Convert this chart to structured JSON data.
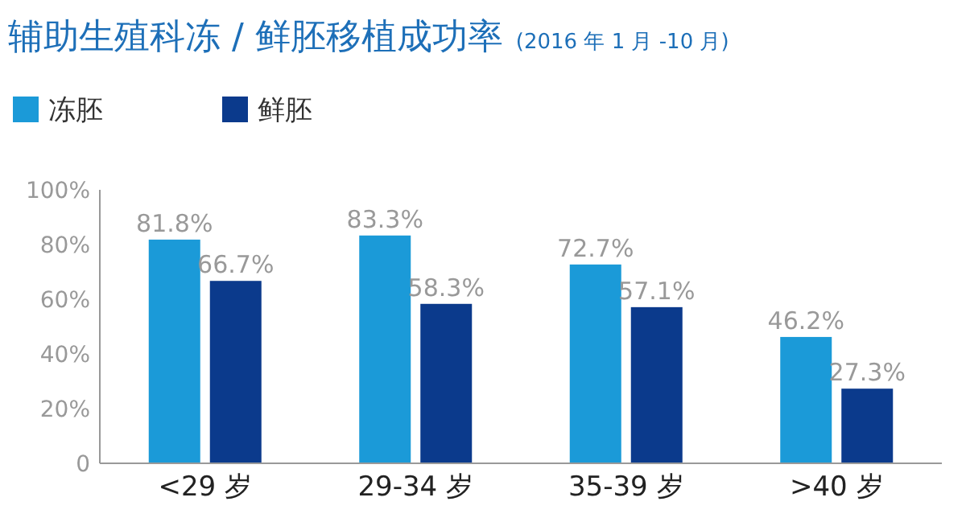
{
  "chart_data": {
    "type": "bar",
    "title": "辅助生殖科冻 / 鲜胚移植成功率",
    "subtitle": "(2016 年 1 月 -10 月)",
    "categories": [
      "<29 岁",
      "29-34 岁",
      "35-39 岁",
      ">40 岁"
    ],
    "series": [
      {
        "name": "冻胚",
        "color": "#1b9ad8",
        "values": [
          81.8,
          83.3,
          72.7,
          46.2
        ],
        "value_labels": [
          "81.8%",
          "83.3%",
          "72.7%",
          "46.2%"
        ]
      },
      {
        "name": "鲜胚",
        "color": "#0b3a8c",
        "values": [
          66.7,
          58.3,
          57.1,
          27.3
        ],
        "value_labels": [
          "66.7%",
          "58.3%",
          "57.1%",
          "27.3%"
        ]
      }
    ],
    "ylim": [
      0,
      100
    ],
    "yticks": [
      {
        "value": 0,
        "label": "0"
      },
      {
        "value": 20,
        "label": "20%"
      },
      {
        "value": 40,
        "label": "40%"
      },
      {
        "value": 60,
        "label": "60%"
      },
      {
        "value": 80,
        "label": "80%"
      },
      {
        "value": 100,
        "label": "100%"
      }
    ],
    "grid": false,
    "legend": "top left"
  }
}
